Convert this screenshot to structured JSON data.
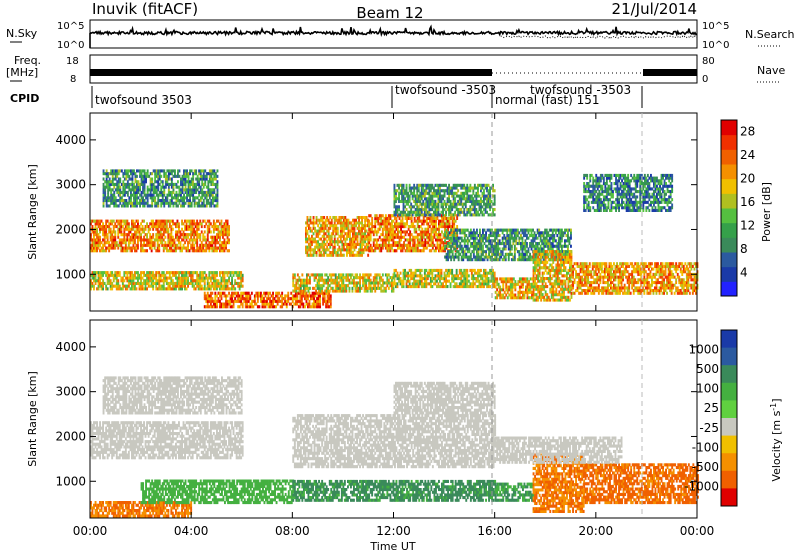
{
  "header": {
    "station": "Inuvik (fitACF)",
    "beam": "Beam 12",
    "date": "21/Jul/2014"
  },
  "strips": {
    "nsky_label": "N.Sky",
    "nsky_ticks": [
      "10^5",
      "10^0"
    ],
    "nsearch_label": "N.Search",
    "freq_label_1": "Freq.",
    "freq_label_2": "[MHz]",
    "freq_ticks": [
      "18",
      "8"
    ],
    "nave_label": "Nave",
    "nave_ticks": [
      "80",
      "0"
    ],
    "cpid_label": "CPID",
    "cpid_segments": [
      {
        "name": "twofsound 3503",
        "start_hour": 0
      },
      {
        "name": "twofsound -3503",
        "start_hour": 12
      },
      {
        "name": "normal (fast) 151",
        "start_hour": 16
      },
      {
        "name": "twofsound -3503",
        "start_hour": 18.5
      }
    ]
  },
  "x_axis": {
    "label": "Time UT",
    "ticks": [
      "00:00",
      "04:00",
      "08:00",
      "12:00",
      "16:00",
      "20:00",
      "00:00"
    ],
    "range_hours": [
      0,
      24
    ]
  },
  "chart_data": [
    {
      "type": "heatmap",
      "name": "power",
      "ylabel": "Slant Range [km]",
      "y_ticks": [
        1000,
        2000,
        3000,
        4000
      ],
      "ylim": [
        180,
        4600
      ],
      "colorbar_label": "Power [dB]",
      "colorbar_ticks": [
        4,
        8,
        12,
        16,
        20,
        24,
        28
      ],
      "colorbar_range": [
        0,
        30
      ],
      "colorbar_colors": [
        "#2222ff",
        "#1a3aa8",
        "#2b5aa0",
        "#3a8a5a",
        "#35a04a",
        "#55c040",
        "#b0c020",
        "#f0c000",
        "#f59000",
        "#f06000",
        "#f03000",
        "#e00000"
      ],
      "bands": [
        {
          "t0": 0.0,
          "t1": 5.5,
          "r0": 1500,
          "r1": 2200,
          "value": 22
        },
        {
          "t0": 0.0,
          "t1": 6.0,
          "r0": 650,
          "r1": 1050,
          "value": 18
        },
        {
          "t0": 0.5,
          "t1": 5.0,
          "r0": 2500,
          "r1": 3300,
          "value": 10
        },
        {
          "t0": 4.5,
          "t1": 9.5,
          "r0": 250,
          "r1": 600,
          "value": 24
        },
        {
          "t0": 8.0,
          "t1": 12.0,
          "r0": 600,
          "r1": 1000,
          "value": 18
        },
        {
          "t0": 8.5,
          "t1": 11.0,
          "r0": 1400,
          "r1": 2300,
          "value": 20
        },
        {
          "t0": 11.0,
          "t1": 14.5,
          "r0": 1500,
          "r1": 2300,
          "value": 22
        },
        {
          "t0": 12.0,
          "t1": 16.0,
          "r0": 700,
          "r1": 1100,
          "value": 17
        },
        {
          "t0": 12.0,
          "t1": 16.0,
          "r0": 2300,
          "r1": 3000,
          "value": 11
        },
        {
          "t0": 14.0,
          "t1": 19.0,
          "r0": 1300,
          "r1": 2000,
          "value": 10
        },
        {
          "t0": 16.0,
          "t1": 17.5,
          "r0": 450,
          "r1": 900,
          "value": 20
        },
        {
          "t0": 17.5,
          "t1": 19.0,
          "r0": 400,
          "r1": 1500,
          "value": 19
        },
        {
          "t0": 19.0,
          "t1": 24.0,
          "r0": 550,
          "r1": 1250,
          "value": 21
        },
        {
          "t0": 19.5,
          "t1": 23.0,
          "r0": 2400,
          "r1": 3200,
          "value": 9
        }
      ]
    },
    {
      "type": "heatmap",
      "name": "velocity",
      "ylabel": "Slant Range [km]",
      "y_ticks": [
        1000,
        2000,
        3000,
        4000
      ],
      "ylim": [
        180,
        4600
      ],
      "colorbar_label": "Velocity [m s^-1]",
      "colorbar_ticks": [
        "1000",
        "500",
        "100",
        "25",
        "-25",
        "-100",
        "-500",
        "-1000"
      ],
      "colorbar_colors": [
        "#1a3aa8",
        "#2b5aa0",
        "#3a8a5a",
        "#44b040",
        "#60d040",
        "#c8c8c0",
        "#f0c000",
        "#f59000",
        "#f06000",
        "#e00000"
      ],
      "bands": [
        {
          "t0": 0.0,
          "t1": 6.0,
          "r0": 1500,
          "r1": 2300,
          "value": 0
        },
        {
          "t0": 0.5,
          "t1": 6.0,
          "r0": 2500,
          "r1": 3300,
          "value": 0
        },
        {
          "t0": 0.0,
          "t1": 4.0,
          "r0": 200,
          "r1": 550,
          "value": -300
        },
        {
          "t0": 2.0,
          "t1": 8.0,
          "r0": 500,
          "r1": 1000,
          "value": 150
        },
        {
          "t0": 8.0,
          "t1": 16.0,
          "r0": 550,
          "r1": 1000,
          "value": 400
        },
        {
          "t0": 8.0,
          "t1": 16.0,
          "r0": 1300,
          "r1": 2500,
          "value": 0
        },
        {
          "t0": 12.0,
          "t1": 16.0,
          "r0": 2500,
          "r1": 3200,
          "value": 0
        },
        {
          "t0": 16.0,
          "t1": 17.5,
          "r0": 550,
          "r1": 950,
          "value": 300
        },
        {
          "t0": 17.5,
          "t1": 19.5,
          "r0": 300,
          "r1": 1600,
          "value": -300
        },
        {
          "t0": 19.5,
          "t1": 24.0,
          "r0": 500,
          "r1": 1400,
          "value": -400
        },
        {
          "t0": 16.0,
          "t1": 21.0,
          "r0": 1400,
          "r1": 2000,
          "value": 0
        }
      ]
    }
  ]
}
